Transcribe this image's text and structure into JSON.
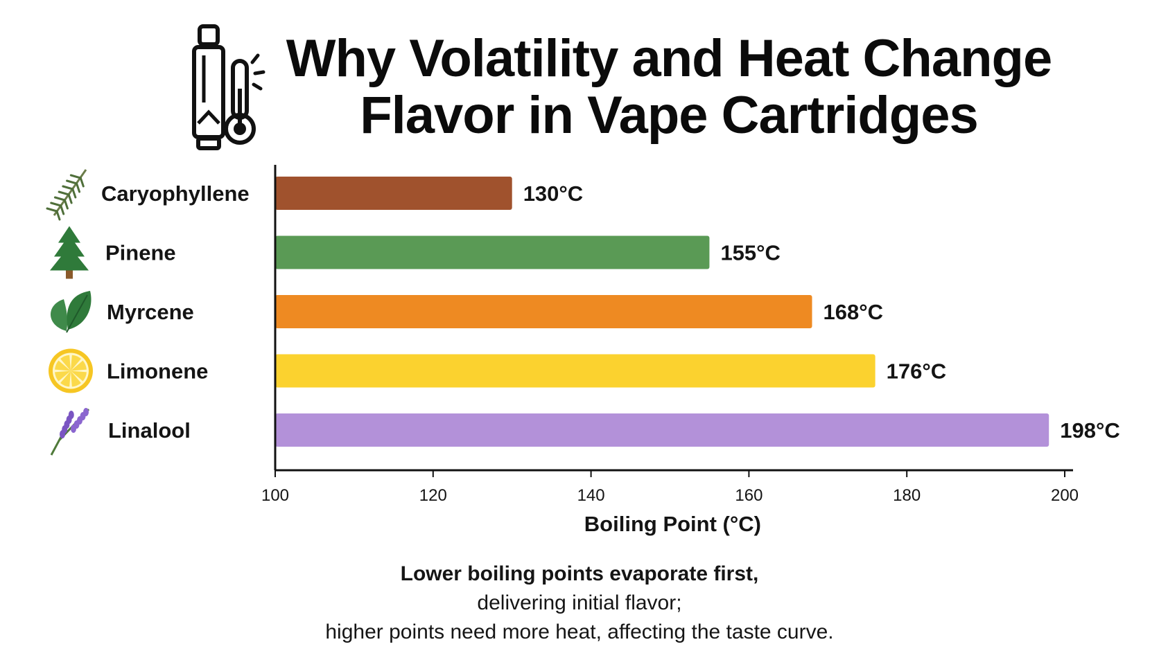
{
  "header": {
    "title_line1": "Why Volatility and Heat Change",
    "title_line2": "Flavor in Vape Cartridges",
    "icon": "vape-cartridge-thermometer-icon"
  },
  "chart_data": {
    "type": "bar",
    "orientation": "horizontal",
    "categories": [
      "Caryophyllene",
      "Pinene",
      "Myrcene",
      "Limonene",
      "Linalool"
    ],
    "values": [
      130,
      155,
      168,
      176,
      198
    ],
    "data_labels": [
      "130°C",
      "155°C",
      "168°C",
      "176°C",
      "198°C"
    ],
    "colors": [
      "#A0522D",
      "#5A9A55",
      "#EE8A22",
      "#FBD22F",
      "#B391D9"
    ],
    "icons": [
      "rosemary-sprig-icon",
      "pine-tree-icon",
      "leaf-icon",
      "lemon-slice-icon",
      "lavender-icon"
    ],
    "title": "",
    "xlabel": "Boiling Point (°C)",
    "ylabel": "",
    "xlim": [
      100,
      200
    ],
    "xticks": [
      100,
      120,
      140,
      160,
      180,
      200
    ],
    "grid": false,
    "legend": "none"
  },
  "caption": {
    "line1_bold": "Lower boiling points evaporate first,",
    "line1_rest": " delivering initial flavor;",
    "line2": "higher points need more heat, affecting the taste curve."
  }
}
